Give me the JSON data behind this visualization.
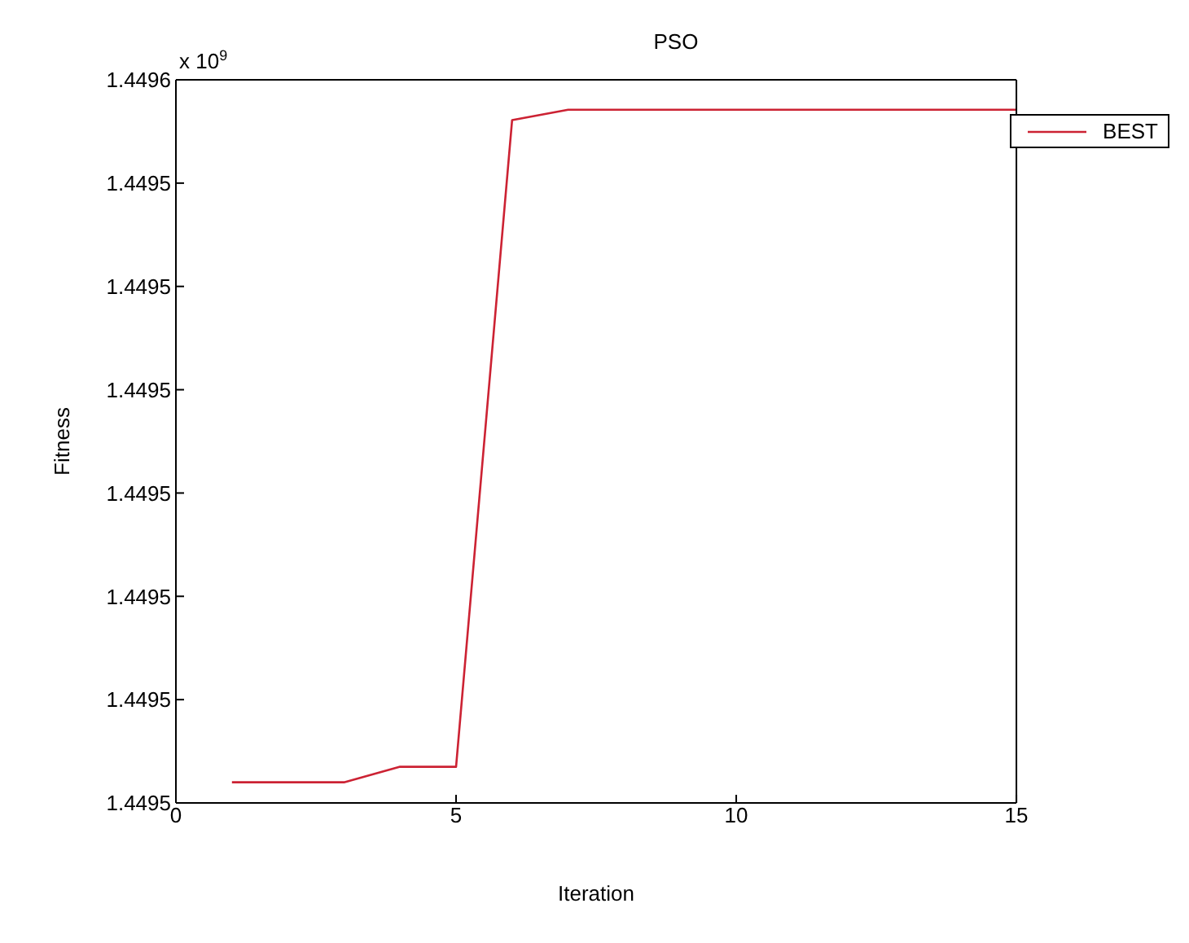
{
  "chart_data": {
    "type": "line",
    "title": "PSO",
    "xlabel": "Iteration",
    "ylabel": "Fitness",
    "annotations": [
      "x 10$^{9}$"
    ],
    "x": [
      1,
      2,
      3,
      4,
      5,
      6,
      7,
      8,
      9,
      10,
      11,
      12,
      13,
      14,
      15
    ],
    "series": [
      {
        "name": "BEST",
        "color": "#cc2233",
        "values": [
          1.449482,
          1.449482,
          1.449482,
          1.4494835,
          1.4494835,
          1.4495461,
          1.4495471,
          1.4495471,
          1.4495471,
          1.4495471,
          1.4495471,
          1.4495471,
          1.4495471,
          1.4495471,
          1.4495471
        ]
      }
    ],
    "xlim": [
      0,
      15
    ],
    "xticks": [
      0,
      5,
      10,
      15
    ],
    "ylim": [
      1.44948,
      1.44955
    ],
    "yticks": [
      {
        "value": 1.44948,
        "label": "1.4495"
      },
      {
        "value": 1.44949,
        "label": "1.4495"
      },
      {
        "value": 1.4495,
        "label": "1.4495"
      },
      {
        "value": 1.44951,
        "label": "1.4495"
      },
      {
        "value": 1.44952,
        "label": "1.4495"
      },
      {
        "value": 1.44953,
        "label": "1.4495"
      },
      {
        "value": 1.44954,
        "label": "1.4495"
      },
      {
        "value": 1.44955,
        "label": "1.4496"
      }
    ],
    "grid": false,
    "legend": "top right",
    "marker": "none",
    "line_style": "solid"
  }
}
